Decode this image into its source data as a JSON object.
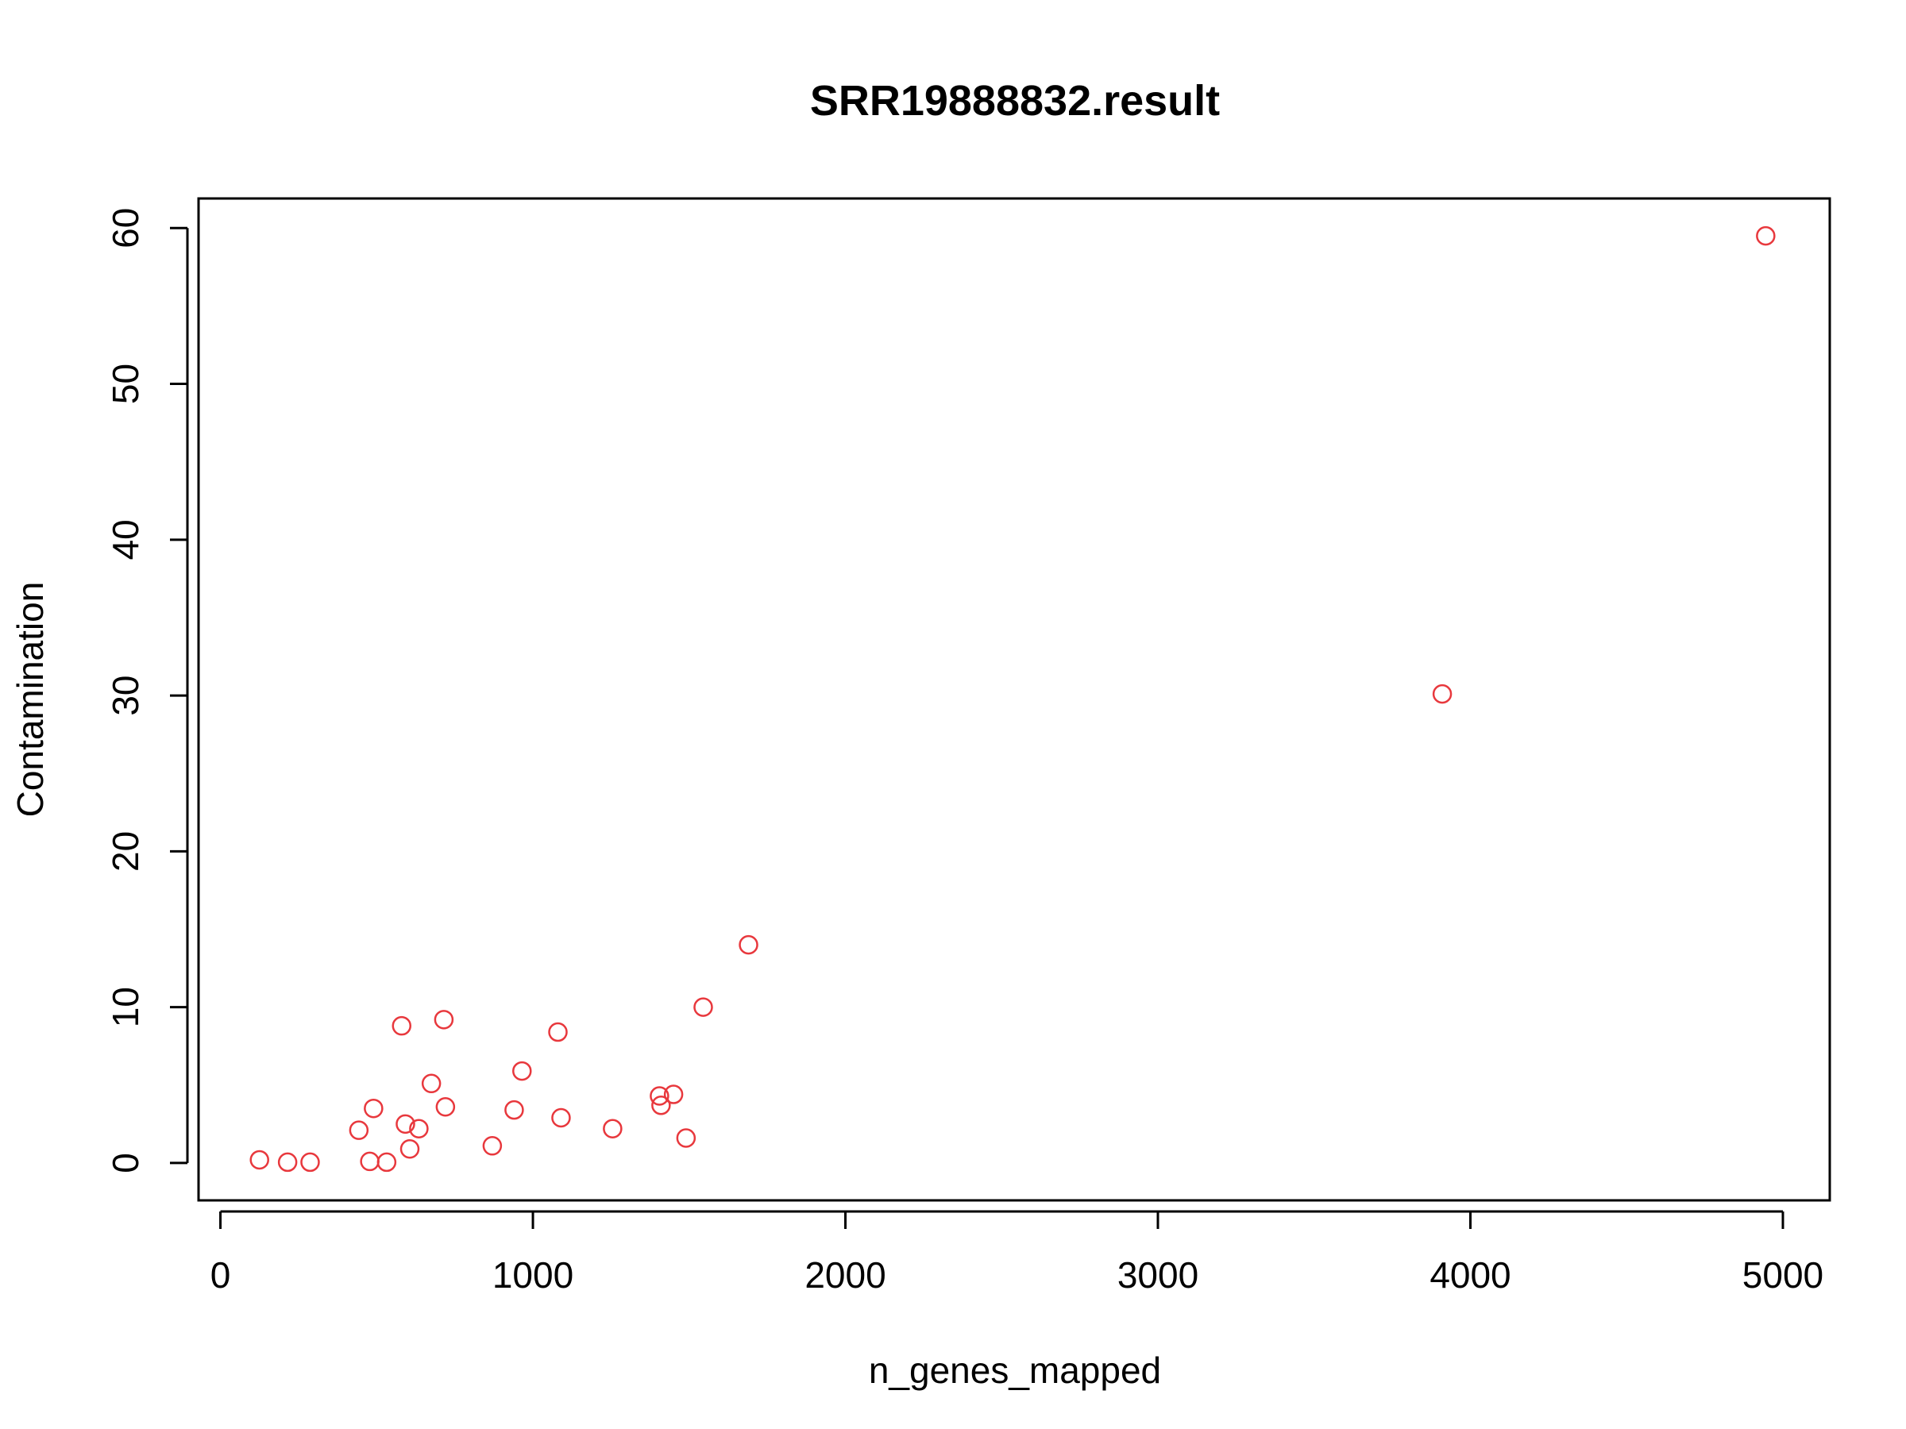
{
  "chart_data": {
    "type": "scatter",
    "title": "SRR19888832.result",
    "xlabel": "n_genes_mapped",
    "ylabel": "Contamination",
    "xlim": [
      -70,
      5150
    ],
    "ylim": [
      -2.4,
      61.9
    ],
    "xticks": [
      0,
      1000,
      2000,
      3000,
      4000,
      5000
    ],
    "yticks": [
      0,
      10,
      20,
      30,
      40,
      50,
      60
    ],
    "grid": false,
    "legend": "none",
    "point_color": "#e8383d",
    "points": [
      {
        "x": 125,
        "y": 0.2
      },
      {
        "x": 215,
        "y": 0.05
      },
      {
        "x": 287,
        "y": 0.05
      },
      {
        "x": 443,
        "y": 2.1
      },
      {
        "x": 478,
        "y": 0.1
      },
      {
        "x": 490,
        "y": 3.5
      },
      {
        "x": 532,
        "y": 0.05
      },
      {
        "x": 580,
        "y": 8.8
      },
      {
        "x": 592,
        "y": 2.5
      },
      {
        "x": 606,
        "y": 0.9
      },
      {
        "x": 635,
        "y": 2.2
      },
      {
        "x": 675,
        "y": 5.1
      },
      {
        "x": 715,
        "y": 9.2
      },
      {
        "x": 720,
        "y": 3.6
      },
      {
        "x": 870,
        "y": 1.1
      },
      {
        "x": 940,
        "y": 3.4
      },
      {
        "x": 965,
        "y": 5.9
      },
      {
        "x": 1080,
        "y": 8.4
      },
      {
        "x": 1090,
        "y": 2.9
      },
      {
        "x": 1255,
        "y": 2.2
      },
      {
        "x": 1405,
        "y": 4.3
      },
      {
        "x": 1410,
        "y": 3.7
      },
      {
        "x": 1450,
        "y": 4.4
      },
      {
        "x": 1490,
        "y": 1.6
      },
      {
        "x": 1545,
        "y": 10.0
      },
      {
        "x": 1690,
        "y": 14.0
      },
      {
        "x": 3910,
        "y": 30.1
      },
      {
        "x": 4945,
        "y": 59.5
      }
    ]
  }
}
